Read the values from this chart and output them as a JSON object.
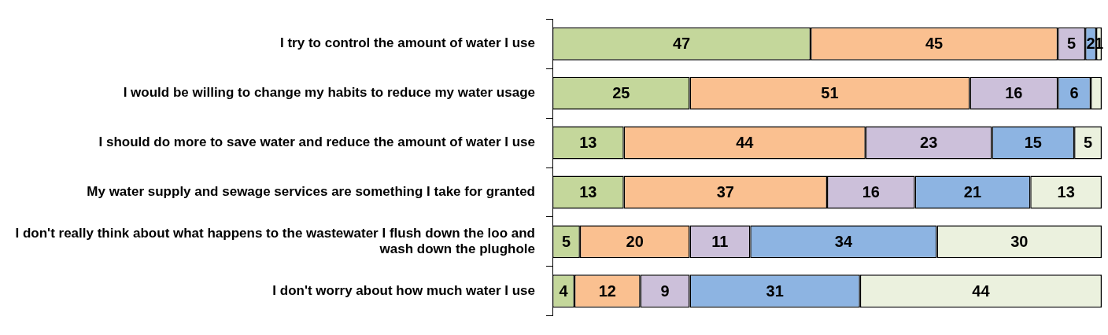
{
  "chart_data": {
    "type": "bar",
    "orientation": "horizontal",
    "stacked": true,
    "legend": false,
    "grid": false,
    "categories": [
      "I try to control the amount of water I use",
      "I would be willing to change my habits to reduce my water usage",
      "I should do more to save water and reduce the amount of water I use",
      "My water supply and sewage services are something I take for granted",
      "I don't really think about what happens to the wastewater I flush down the loo and wash down the plughole",
      "I don't worry about how much water I use"
    ],
    "series": [
      {
        "color": "#c4d79b",
        "values": [
          47,
          25,
          13,
          13,
          5,
          4
        ],
        "value_labels": [
          "47",
          "25",
          "13",
          "13",
          "5",
          "4"
        ]
      },
      {
        "color": "#fac090",
        "values": [
          45,
          51,
          44,
          37,
          20,
          12
        ],
        "value_labels": [
          "45",
          "51",
          "44",
          "37",
          "20",
          "12"
        ]
      },
      {
        "color": "#ccc0da",
        "values": [
          5,
          16,
          23,
          16,
          11,
          9
        ],
        "value_labels": [
          "5",
          "16",
          "23",
          "16",
          "11",
          "9"
        ]
      },
      {
        "color": "#8db4e2",
        "values": [
          2,
          6,
          15,
          21,
          34,
          31
        ],
        "value_labels": [
          "2",
          "6",
          "15",
          "21",
          "34",
          "31"
        ]
      },
      {
        "color": "#ebf1de",
        "values": [
          1,
          2,
          5,
          13,
          30,
          44
        ],
        "value_labels": [
          "1",
          null,
          "5",
          "13",
          "30",
          "44"
        ]
      }
    ]
  }
}
